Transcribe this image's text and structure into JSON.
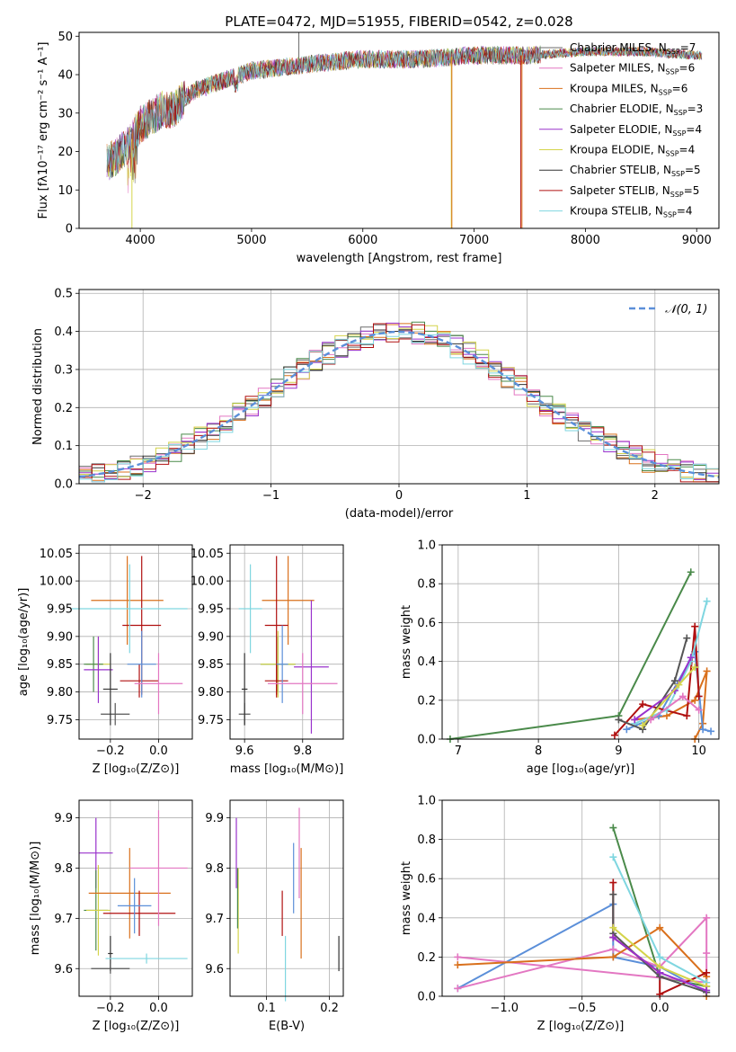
{
  "chart_data": [
    {
      "id": "spectrum",
      "type": "line",
      "title": "PLATE=0472, MJD=51955, FIBERID=0542, z=0.028",
      "xlabel": "wavelength [Angstrom, rest frame]",
      "ylabel": "Flux [fλ10⁻¹⁷ erg cm⁻² s⁻¹ A⁻¹]",
      "xlim": [
        3450,
        9200
      ],
      "ylim": [
        0,
        51
      ],
      "xticks": [
        4000,
        5000,
        6000,
        7000,
        8000,
        9000
      ],
      "yticks": [
        0,
        10,
        20,
        30,
        40,
        50
      ],
      "legend_position": "right",
      "series": [
        {
          "name": "Chabrier MILES, N_SSP=7",
          "label": "Chabrier MILES, N",
          "sub": "SSP",
          "n": "=7",
          "color": "#6b6b6b"
        },
        {
          "name": "Salpeter MILES, N_SSP=6",
          "label": "Salpeter MILES, N",
          "sub": "SSP",
          "n": "=6",
          "color": "#e377c2"
        },
        {
          "name": "Kroupa MILES, N_SSP=6",
          "label": "Kroupa MILES, N",
          "sub": "SSP",
          "n": "=6",
          "color": "#d9701c"
        },
        {
          "name": "Chabrier ELODIE, N_SSP=3",
          "label": "Chabrier ELODIE, N",
          "sub": "SSP",
          "n": "=3",
          "color": "#4a8a4a"
        },
        {
          "name": "Salpeter ELODIE, N_SSP=4",
          "label": "Salpeter ELODIE, N",
          "sub": "SSP",
          "n": "=4",
          "color": "#9932cc"
        },
        {
          "name": "Kroupa ELODIE, N_SSP=4",
          "label": "Kroupa ELODIE, N",
          "sub": "SSP",
          "n": "=4",
          "color": "#d4d44a"
        },
        {
          "name": "Chabrier STELIB, N_SSP=5",
          "label": "Chabrier STELIB, N",
          "sub": "SSP",
          "n": "=5",
          "color": "#333333"
        },
        {
          "name": "Salpeter STELIB, N_SSP=5",
          "label": "Salpeter STELIB, N",
          "sub": "SSP",
          "n": "=5",
          "color": "#b01010"
        },
        {
          "name": "Kroupa STELIB, N_SSP=4",
          "label": "Kroupa STELIB, N",
          "sub": "SSP",
          "n": "=4",
          "color": "#7fd6e0"
        }
      ],
      "continuum": {
        "x": [
          3700,
          3800,
          3900,
          4000,
          4100,
          4200,
          4300,
          4400,
          4500,
          4700,
          5000,
          5300,
          5600,
          6000,
          6500,
          7000,
          7500,
          8000,
          8500,
          9000
        ],
        "y": [
          17,
          19,
          22,
          27,
          29,
          31,
          31,
          34,
          36,
          38,
          41,
          42,
          43,
          44,
          44,
          45,
          45,
          46,
          46,
          45
        ]
      }
    },
    {
      "id": "residuals",
      "type": "histogram",
      "xlabel": "(data-model)/error",
      "ylabel": "Normed distribution",
      "xlim": [
        -2.5,
        2.5
      ],
      "ylim": [
        0,
        0.51
      ],
      "xticks": [
        -2,
        -1,
        0,
        1,
        2
      ],
      "yticks": [
        0.0,
        0.1,
        0.2,
        0.3,
        0.4,
        0.5
      ],
      "grid": true,
      "legend_position": "top-right",
      "legend": "𝒩(0, 1)",
      "reference_curve": {
        "name": "𝒩(0, 1)",
        "color": "#5b8fd9",
        "mu": 0,
        "sigma": 1
      }
    },
    {
      "id": "age-vs-Z",
      "type": "scatter",
      "xlabel": "Z [log₁₀(Z/Z⊙)]",
      "ylabel": "age  [log₁₀(age/yr)]",
      "xlim": [
        -0.33,
        0.14
      ],
      "ylim": [
        9.715,
        10.065
      ],
      "xticks": [
        -0.2,
        0.0
      ],
      "yticks": [
        9.75,
        9.8,
        9.85,
        9.9,
        9.95,
        10.0,
        10.05
      ],
      "grid": true,
      "points": [
        {
          "x": -0.25,
          "y": 9.85,
          "xerr": 0.05,
          "yerr": 0.05,
          "color": "#d4d44a"
        },
        {
          "x": -0.27,
          "y": 9.85,
          "xerr": 0.04,
          "yerr": 0.05,
          "color": "#4a8a4a"
        },
        {
          "x": -0.25,
          "y": 9.84,
          "xerr": 0.06,
          "yerr": 0.06,
          "color": "#9932cc"
        },
        {
          "x": -0.18,
          "y": 9.76,
          "xerr": 0.06,
          "yerr": 0.02,
          "color": "#555555"
        },
        {
          "x": -0.2,
          "y": 9.805,
          "xerr": 0.03,
          "yerr": 0.065,
          "color": "#333333"
        },
        {
          "x": -0.13,
          "y": 9.965,
          "xerr": 0.15,
          "yerr": 0.08,
          "color": "#d9701c"
        },
        {
          "x": -0.07,
          "y": 9.92,
          "xerr": 0.08,
          "yerr": 0.125,
          "color": "#b01010"
        },
        {
          "x": -0.08,
          "y": 9.82,
          "xerr": 0.08,
          "yerr": 0.03,
          "color": "#b01010"
        },
        {
          "x": -0.07,
          "y": 9.85,
          "xerr": 0.06,
          "yerr": 0.06,
          "color": "#5b8fd9"
        },
        {
          "x": -0.12,
          "y": 9.95,
          "xerr": 0.24,
          "yerr": 0.08,
          "color": "#7fd6e0"
        },
        {
          "x": 0.0,
          "y": 9.815,
          "xerr": 0.1,
          "yerr": 0.055,
          "color": "#e377c2"
        }
      ]
    },
    {
      "id": "age-vs-mass",
      "type": "scatter",
      "xlabel": "mass [log₁₀(M/M⊙)]",
      "xlim": [
        9.55,
        9.94
      ],
      "ylim": [
        9.715,
        10.065
      ],
      "xticks": [
        9.6,
        9.8
      ],
      "yticks": [
        9.75,
        9.8,
        9.85,
        9.9,
        9.95,
        10.0,
        10.05
      ],
      "grid": true,
      "points": [
        {
          "x": 9.6,
          "y": 9.76,
          "xerr": 0.02,
          "yerr": 0.02,
          "color": "#555555"
        },
        {
          "x": 9.6,
          "y": 9.805,
          "xerr": 0.01,
          "yerr": 0.065,
          "color": "#333333"
        },
        {
          "x": 9.715,
          "y": 9.85,
          "xerr": 0.06,
          "yerr": 0.05,
          "color": "#4a8a4a"
        },
        {
          "x": 9.715,
          "y": 9.85,
          "xerr": 0.06,
          "yerr": 0.06,
          "color": "#d4d44a"
        },
        {
          "x": 9.75,
          "y": 9.965,
          "xerr": 0.09,
          "yerr": 0.08,
          "color": "#d9701c"
        },
        {
          "x": 9.71,
          "y": 9.92,
          "xerr": 0.04,
          "yerr": 0.125,
          "color": "#b01010"
        },
        {
          "x": 9.71,
          "y": 9.82,
          "xerr": 0.04,
          "yerr": 0.03,
          "color": "#b01010"
        },
        {
          "x": 9.73,
          "y": 9.85,
          "xerr": 0.02,
          "yerr": 0.07,
          "color": "#5b8fd9"
        },
        {
          "x": 9.62,
          "y": 9.95,
          "xerr": 0.04,
          "yerr": 0.08,
          "color": "#7fd6e0"
        },
        {
          "x": 9.83,
          "y": 9.845,
          "xerr": 0.06,
          "yerr": 0.12,
          "color": "#9932cc"
        },
        {
          "x": 9.8,
          "y": 9.815,
          "xerr": 0.12,
          "yerr": 0.055,
          "color": "#e377c2"
        }
      ]
    },
    {
      "id": "weight-vs-age",
      "type": "line",
      "xlabel": "age  [log₁₀(age/yr)]",
      "ylabel": "mass weight",
      "xlim": [
        6.8,
        10.25
      ],
      "ylim": [
        0,
        1.0
      ],
      "xticks": [
        7,
        8,
        9,
        10
      ],
      "yticks": [
        0.0,
        0.2,
        0.4,
        0.6,
        0.8,
        1.0
      ],
      "grid": true,
      "series": [
        {
          "color": "#4a8a4a",
          "x": [
            6.9,
            9.0,
            9.9
          ],
          "y": [
            0.0,
            0.12,
            0.86
          ]
        },
        {
          "color": "#d9701c",
          "x": [
            9.2,
            9.6,
            9.95,
            10.1,
            10.05,
            9.95
          ],
          "y": [
            0.1,
            0.12,
            0.2,
            0.35,
            0.08,
            0.0
          ]
        },
        {
          "color": "#5b8fd9",
          "x": [
            9.1,
            9.5,
            9.95,
            10.05,
            10.15
          ],
          "y": [
            0.05,
            0.12,
            0.45,
            0.05,
            0.04
          ]
        },
        {
          "color": "#b01010",
          "x": [
            8.95,
            9.3,
            9.85,
            9.95,
            10.0
          ],
          "y": [
            0.02,
            0.18,
            0.12,
            0.58,
            0.22
          ]
        },
        {
          "color": "#7fd6e0",
          "x": [
            9.2,
            9.6,
            9.9,
            10.1
          ],
          "y": [
            0.08,
            0.15,
            0.4,
            0.71
          ]
        },
        {
          "color": "#555555",
          "x": [
            9.0,
            9.3,
            9.7,
            9.85
          ],
          "y": [
            0.1,
            0.05,
            0.3,
            0.52
          ]
        },
        {
          "color": "#9932cc",
          "x": [
            9.2,
            9.7,
            9.9
          ],
          "y": [
            0.1,
            0.25,
            0.42
          ]
        },
        {
          "color": "#d4d44a",
          "x": [
            9.3,
            9.75,
            9.95
          ],
          "y": [
            0.07,
            0.28,
            0.37
          ]
        },
        {
          "color": "#e377c2",
          "x": [
            9.4,
            9.8,
            10.0
          ],
          "y": [
            0.1,
            0.22,
            0.15
          ]
        }
      ]
    },
    {
      "id": "mass-vs-Z",
      "type": "scatter",
      "xlabel": "Z [log₁₀(Z/Z⊙)]",
      "ylabel": "mass [log₁₀(M/M⊙)]",
      "xlim": [
        -0.33,
        0.14
      ],
      "ylim": [
        9.545,
        9.935
      ],
      "xticks": [
        -0.2,
        0.0
      ],
      "yticks": [
        9.6,
        9.7,
        9.8,
        9.9
      ],
      "grid": true,
      "points": [
        {
          "x": -0.26,
          "y": 9.83,
          "xerr": 0.07,
          "yerr": 0.07,
          "color": "#9932cc"
        },
        {
          "x": -0.26,
          "y": 9.716,
          "xerr": 0.05,
          "yerr": 0.08,
          "color": "#4a8a4a"
        },
        {
          "x": -0.25,
          "y": 9.716,
          "xerr": 0.05,
          "yerr": 0.09,
          "color": "#d4d44a"
        },
        {
          "x": -0.12,
          "y": 9.75,
          "xerr": 0.17,
          "yerr": 0.09,
          "color": "#d9701c"
        },
        {
          "x": -0.08,
          "y": 9.71,
          "xerr": 0.15,
          "yerr": 0.045,
          "color": "#b01010"
        },
        {
          "x": -0.1,
          "y": 9.725,
          "xerr": 0.07,
          "yerr": 0.055,
          "color": "#5b8fd9"
        },
        {
          "x": -0.2,
          "y": 9.63,
          "xerr": 0.01,
          "yerr": 0.035,
          "color": "#333333"
        },
        {
          "x": -0.2,
          "y": 9.6,
          "xerr": 0.08,
          "yerr": 0.01,
          "color": "#555555"
        },
        {
          "x": -0.05,
          "y": 9.62,
          "xerr": 0.17,
          "yerr": 0.01,
          "color": "#7fd6e0"
        },
        {
          "x": 0.0,
          "y": 9.8,
          "xerr": 0.12,
          "yerr": 0.115,
          "color": "#e377c2"
        }
      ]
    },
    {
      "id": "mass-vs-EBV",
      "type": "scatter",
      "xlabel": "E(B-V)",
      "xlim": [
        0.042,
        0.222
      ],
      "ylim": [
        9.545,
        9.935
      ],
      "xticks": [
        0.1,
        0.2
      ],
      "yticks": [
        9.6,
        9.7,
        9.8,
        9.9
      ],
      "grid": true,
      "points": [
        {
          "x": 0.052,
          "y": 9.83,
          "yerr": 0.07,
          "color": "#9932cc"
        },
        {
          "x": 0.055,
          "y": 9.715,
          "yerr": 0.085,
          "color": "#d4d44a"
        },
        {
          "x": 0.054,
          "y": 9.74,
          "yerr": 0.06,
          "color": "#4a8a4a"
        },
        {
          "x": 0.125,
          "y": 9.71,
          "yerr": 0.045,
          "color": "#b01010"
        },
        {
          "x": 0.13,
          "y": 9.6,
          "yerr": 0.065,
          "color": "#7fd6e0"
        },
        {
          "x": 0.143,
          "y": 9.78,
          "yerr": 0.07,
          "color": "#5b8fd9"
        },
        {
          "x": 0.155,
          "y": 9.73,
          "yerr": 0.11,
          "color": "#d9701c"
        },
        {
          "x": 0.152,
          "y": 9.83,
          "yerr": 0.09,
          "color": "#e377c2"
        },
        {
          "x": 0.215,
          "y": 9.63,
          "yerr": 0.035,
          "color": "#333333"
        }
      ]
    },
    {
      "id": "weight-vs-Z",
      "type": "line",
      "xlabel": "Z [log₁₀(Z/Z⊙)]",
      "ylabel": "mass weight",
      "xlim": [
        -1.4,
        0.38
      ],
      "ylim": [
        0,
        1.0
      ],
      "xticks": [
        -1.0,
        -0.5,
        0.0
      ],
      "yticks": [
        0.0,
        0.2,
        0.4,
        0.6,
        0.8,
        1.0
      ],
      "grid": true,
      "series": [
        {
          "color": "#4a8a4a",
          "x": [
            -0.3,
            0.0,
            0.3
          ],
          "y": [
            0.86,
            0.1,
            0.05
          ]
        },
        {
          "color": "#5b8fd9",
          "x": [
            -1.3,
            -0.3,
            -0.3,
            0.0,
            0.3
          ],
          "y": [
            0.04,
            0.47,
            0.2,
            0.15,
            0.02
          ]
        },
        {
          "color": "#e377c2",
          "x": [
            -1.3,
            -0.3,
            0.0,
            0.3,
            0.3,
            0.3,
            -1.3
          ],
          "y": [
            0.04,
            0.24,
            0.15,
            0.4,
            0.22,
            0.07,
            0.2
          ]
        },
        {
          "color": "#d9701c",
          "x": [
            -1.3,
            -0.3,
            0.0,
            0.3,
            0.3
          ],
          "y": [
            0.16,
            0.2,
            0.35,
            0.1,
            0.0
          ]
        },
        {
          "color": "#b01010",
          "x": [
            -0.3,
            -0.3,
            0.0,
            0.0,
            0.3
          ],
          "y": [
            0.58,
            0.3,
            0.12,
            0.01,
            0.12
          ]
        },
        {
          "color": "#7fd6e0",
          "x": [
            -0.3,
            0.0,
            0.3
          ],
          "y": [
            0.71,
            0.2,
            0.07
          ]
        },
        {
          "color": "#555555",
          "x": [
            -0.3,
            -0.3,
            0.0,
            0.3
          ],
          "y": [
            0.52,
            0.32,
            0.1,
            0.02
          ]
        },
        {
          "color": "#d4d44a",
          "x": [
            -0.3,
            0.0,
            0.3
          ],
          "y": [
            0.35,
            0.15,
            0.05
          ]
        },
        {
          "color": "#9932cc",
          "x": [
            -0.3,
            0.0,
            0.3
          ],
          "y": [
            0.3,
            0.12,
            0.03
          ]
        }
      ]
    }
  ]
}
